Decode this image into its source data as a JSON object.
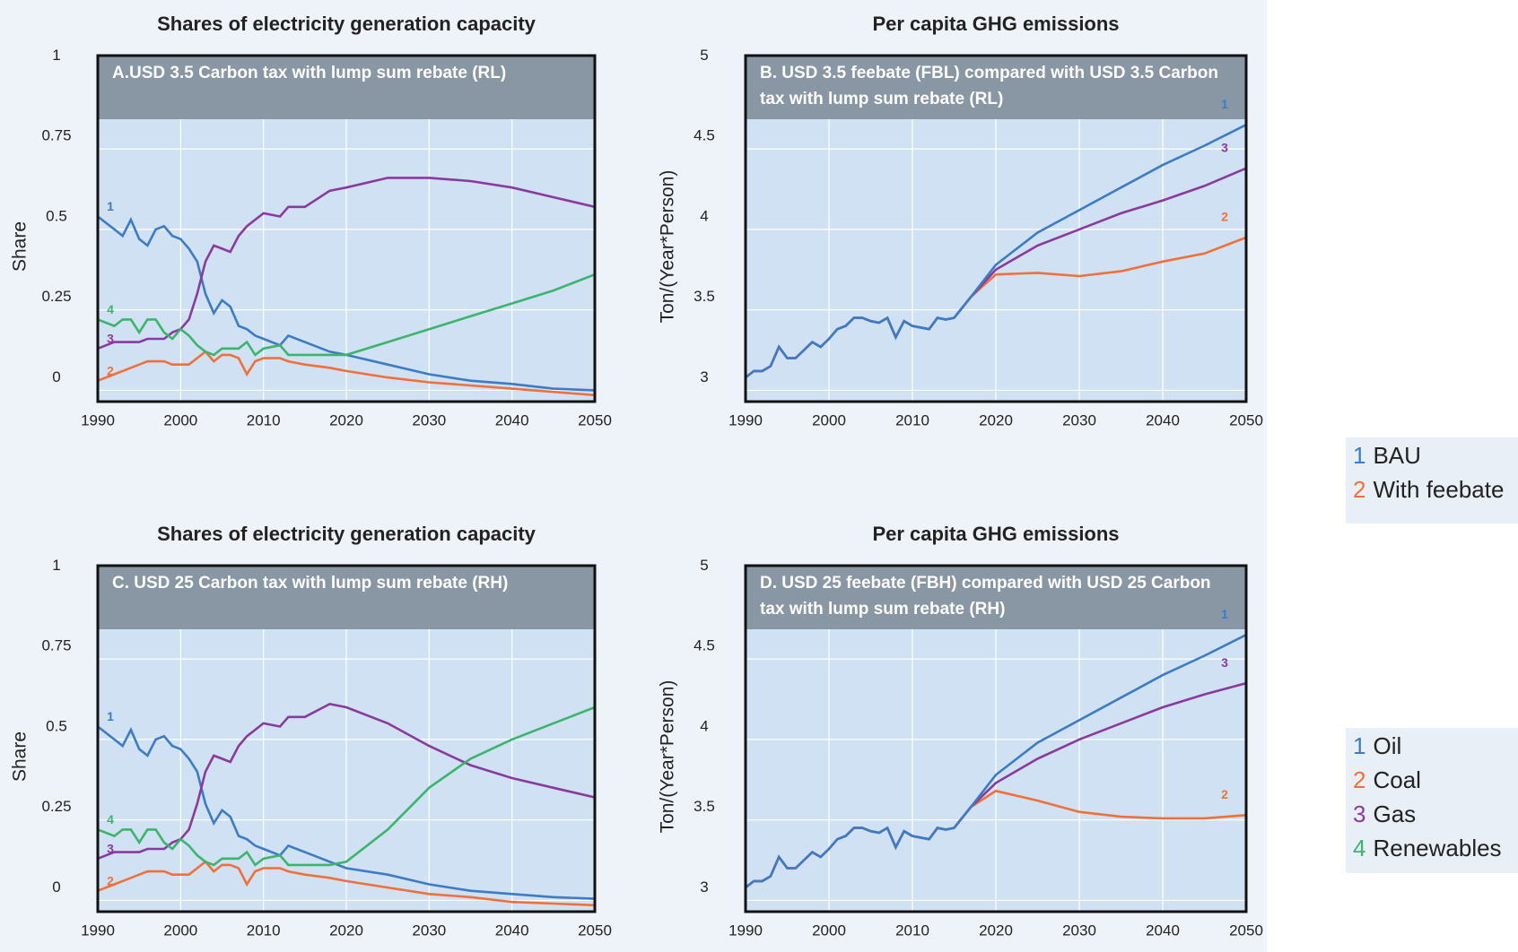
{
  "chart_data": [
    {
      "type": "line",
      "title": "Shares of electricity generation capacity",
      "subtitle": "A.USD 3.5 Carbon tax with lump sum rebate (RL)",
      "ylabel": "Share",
      "x": [
        1990,
        1992,
        1993,
        1994,
        1995,
        1996,
        1997,
        1998,
        1999,
        2000,
        2001,
        2002,
        2003,
        2004,
        2005,
        2006,
        2007,
        2008,
        2009,
        2010,
        2012,
        2013,
        2015,
        2018,
        2020,
        2025,
        2030,
        2035,
        2040,
        2045,
        2050
      ],
      "xlim": [
        1990,
        2050
      ],
      "xticks": [
        1990,
        2000,
        2010,
        2020,
        2030,
        2040,
        2050
      ],
      "ylim": [
        -0.035,
        1.04
      ],
      "yticks": [
        0,
        0.25,
        0.5,
        0.75,
        1
      ],
      "grid": true,
      "series": [
        {
          "name": "Oil",
          "label": "1",
          "color": "#3b7cc4",
          "values": [
            0.54,
            0.5,
            0.48,
            0.53,
            0.47,
            0.45,
            0.5,
            0.51,
            0.48,
            0.47,
            0.44,
            0.4,
            0.3,
            0.24,
            0.28,
            0.26,
            0.2,
            0.19,
            0.17,
            0.16,
            0.14,
            0.17,
            0.15,
            0.12,
            0.11,
            0.08,
            0.05,
            0.03,
            0.02,
            0.005,
            0.0
          ]
        },
        {
          "name": "Coal",
          "label": "2",
          "color": "#f0703a",
          "values": [
            0.03,
            0.05,
            0.06,
            0.07,
            0.08,
            0.09,
            0.09,
            0.09,
            0.08,
            0.08,
            0.08,
            0.1,
            0.12,
            0.09,
            0.11,
            0.11,
            0.1,
            0.05,
            0.09,
            0.1,
            0.1,
            0.09,
            0.08,
            0.07,
            0.06,
            0.04,
            0.025,
            0.015,
            0.005,
            -0.005,
            -0.015
          ]
        },
        {
          "name": "Gas",
          "label": "3",
          "color": "#8a3a9e",
          "values": [
            0.13,
            0.15,
            0.15,
            0.15,
            0.15,
            0.16,
            0.16,
            0.16,
            0.18,
            0.19,
            0.22,
            0.3,
            0.4,
            0.45,
            0.44,
            0.43,
            0.48,
            0.51,
            0.53,
            0.55,
            0.54,
            0.57,
            0.57,
            0.62,
            0.63,
            0.66,
            0.66,
            0.65,
            0.63,
            0.6,
            0.57
          ]
        },
        {
          "name": "Renewables",
          "label": "4",
          "color": "#3db46d",
          "values": [
            0.22,
            0.2,
            0.22,
            0.22,
            0.18,
            0.22,
            0.22,
            0.18,
            0.16,
            0.19,
            0.17,
            0.14,
            0.12,
            0.11,
            0.13,
            0.13,
            0.13,
            0.15,
            0.11,
            0.13,
            0.14,
            0.11,
            0.11,
            0.11,
            0.11,
            0.15,
            0.19,
            0.23,
            0.27,
            0.31,
            0.36
          ]
        }
      ]
    },
    {
      "type": "line",
      "title": "Per capita GHG emissions",
      "subtitle": "B. USD 3.5 feebate (FBL) compared with USD 3.5 Carbon tax with lump sum rebate (RL)",
      "ylabel": "Ton/(Year*Person)",
      "x": [
        1990,
        1991,
        1992,
        1993,
        1994,
        1995,
        1996,
        1998,
        1999,
        2000,
        2001,
        2002,
        2003,
        2004,
        2005,
        2006,
        2007,
        2008,
        2009,
        2010,
        2012,
        2013,
        2014,
        2015,
        2017,
        2020,
        2025,
        2030,
        2035,
        2040,
        2045,
        2050
      ],
      "xlim": [
        1990,
        2050
      ],
      "xticks": [
        1990,
        2000,
        2010,
        2020,
        2030,
        2040,
        2050
      ],
      "ylim": [
        2.93,
        5.08
      ],
      "yticks": [
        3,
        3.5,
        4,
        4.5,
        5
      ],
      "grid": true,
      "series": [
        {
          "name": "With feebate",
          "label": "2",
          "color": "#f0703a",
          "values": [
            3.08,
            3.12,
            3.12,
            3.15,
            3.27,
            3.2,
            3.2,
            3.3,
            3.27,
            3.32,
            3.38,
            3.4,
            3.45,
            3.45,
            3.43,
            3.42,
            3.45,
            3.33,
            3.43,
            3.4,
            3.38,
            3.45,
            3.44,
            3.45,
            3.58,
            3.72,
            3.73,
            3.71,
            3.74,
            3.8,
            3.85,
            3.95
          ]
        },
        {
          "label": "3",
          "color": "#8a3a9e",
          "values": [
            3.08,
            3.12,
            3.12,
            3.15,
            3.27,
            3.2,
            3.2,
            3.3,
            3.27,
            3.32,
            3.38,
            3.4,
            3.45,
            3.45,
            3.43,
            3.42,
            3.45,
            3.33,
            3.43,
            3.4,
            3.38,
            3.45,
            3.44,
            3.45,
            3.58,
            3.75,
            3.9,
            4.0,
            4.1,
            4.18,
            4.27,
            4.38
          ]
        },
        {
          "name": "BAU",
          "label": "1",
          "color": "#3b7cc4",
          "values": [
            3.08,
            3.12,
            3.12,
            3.15,
            3.27,
            3.2,
            3.2,
            3.3,
            3.27,
            3.32,
            3.38,
            3.4,
            3.45,
            3.45,
            3.43,
            3.42,
            3.45,
            3.33,
            3.43,
            3.4,
            3.38,
            3.45,
            3.44,
            3.45,
            3.58,
            3.78,
            3.98,
            4.12,
            4.26,
            4.4,
            4.52,
            4.65
          ]
        }
      ]
    },
    {
      "type": "line",
      "title": "Shares of electricity generation capacity",
      "subtitle": "C. USD 25 Carbon tax with lump sum rebate (RH)",
      "ylabel": "Share",
      "x": [
        1990,
        1992,
        1993,
        1994,
        1995,
        1996,
        1997,
        1998,
        1999,
        2000,
        2001,
        2002,
        2003,
        2004,
        2005,
        2006,
        2007,
        2008,
        2009,
        2010,
        2012,
        2013,
        2015,
        2018,
        2020,
        2025,
        2030,
        2035,
        2040,
        2045,
        2050
      ],
      "xlim": [
        1990,
        2050
      ],
      "xticks": [
        1990,
        2000,
        2010,
        2020,
        2030,
        2040,
        2050
      ],
      "ylim": [
        -0.035,
        1.04
      ],
      "yticks": [
        0,
        0.25,
        0.5,
        0.75,
        1
      ],
      "grid": true,
      "series": [
        {
          "label": "1",
          "color": "#3b7cc4",
          "values": [
            0.54,
            0.5,
            0.48,
            0.53,
            0.47,
            0.45,
            0.5,
            0.51,
            0.48,
            0.47,
            0.44,
            0.4,
            0.3,
            0.24,
            0.28,
            0.26,
            0.2,
            0.19,
            0.17,
            0.16,
            0.14,
            0.17,
            0.15,
            0.12,
            0.1,
            0.08,
            0.05,
            0.03,
            0.02,
            0.01,
            0.005
          ]
        },
        {
          "label": "2",
          "color": "#f0703a",
          "values": [
            0.03,
            0.05,
            0.06,
            0.07,
            0.08,
            0.09,
            0.09,
            0.09,
            0.08,
            0.08,
            0.08,
            0.1,
            0.12,
            0.09,
            0.11,
            0.11,
            0.1,
            0.05,
            0.09,
            0.1,
            0.1,
            0.09,
            0.08,
            0.07,
            0.06,
            0.04,
            0.02,
            0.01,
            -0.005,
            -0.01,
            -0.015
          ]
        },
        {
          "label": "3",
          "color": "#8a3a9e",
          "values": [
            0.13,
            0.15,
            0.15,
            0.15,
            0.15,
            0.16,
            0.16,
            0.16,
            0.18,
            0.19,
            0.22,
            0.3,
            0.4,
            0.45,
            0.44,
            0.43,
            0.48,
            0.51,
            0.53,
            0.55,
            0.54,
            0.57,
            0.57,
            0.61,
            0.6,
            0.55,
            0.48,
            0.42,
            0.38,
            0.35,
            0.32
          ]
        },
        {
          "label": "4",
          "color": "#3db46d",
          "values": [
            0.22,
            0.2,
            0.22,
            0.22,
            0.18,
            0.22,
            0.22,
            0.18,
            0.16,
            0.19,
            0.17,
            0.14,
            0.12,
            0.11,
            0.13,
            0.13,
            0.13,
            0.15,
            0.11,
            0.13,
            0.14,
            0.11,
            0.11,
            0.11,
            0.12,
            0.22,
            0.35,
            0.44,
            0.5,
            0.55,
            0.6
          ]
        }
      ]
    },
    {
      "type": "line",
      "title": "Per capita GHG emissions",
      "subtitle": "D. USD 25 feebate (FBH) compared with USD 25 Carbon tax with lump sum rebate (RH)",
      "ylabel": "Ton/(Year*Person)",
      "x": [
        1990,
        1991,
        1992,
        1993,
        1994,
        1995,
        1996,
        1998,
        1999,
        2000,
        2001,
        2002,
        2003,
        2004,
        2005,
        2006,
        2007,
        2008,
        2009,
        2010,
        2012,
        2013,
        2014,
        2015,
        2017,
        2020,
        2025,
        2030,
        2035,
        2040,
        2045,
        2050
      ],
      "xlim": [
        1990,
        2050
      ],
      "xticks": [
        1990,
        2000,
        2010,
        2020,
        2030,
        2040,
        2050
      ],
      "ylim": [
        2.93,
        5.08
      ],
      "yticks": [
        3,
        3.5,
        4,
        4.5,
        5
      ],
      "grid": true,
      "series": [
        {
          "label": "2",
          "color": "#f0703a",
          "values": [
            3.08,
            3.12,
            3.12,
            3.15,
            3.27,
            3.2,
            3.2,
            3.3,
            3.27,
            3.32,
            3.38,
            3.4,
            3.45,
            3.45,
            3.43,
            3.42,
            3.45,
            3.33,
            3.43,
            3.4,
            3.38,
            3.45,
            3.44,
            3.45,
            3.58,
            3.68,
            3.62,
            3.55,
            3.52,
            3.51,
            3.51,
            3.53
          ]
        },
        {
          "label": "3",
          "color": "#8a3a9e",
          "values": [
            3.08,
            3.12,
            3.12,
            3.15,
            3.27,
            3.2,
            3.2,
            3.3,
            3.27,
            3.32,
            3.38,
            3.4,
            3.45,
            3.45,
            3.43,
            3.42,
            3.45,
            3.33,
            3.43,
            3.4,
            3.38,
            3.45,
            3.44,
            3.45,
            3.58,
            3.73,
            3.88,
            4.0,
            4.1,
            4.2,
            4.28,
            4.35
          ]
        },
        {
          "label": "1",
          "color": "#3b7cc4",
          "values": [
            3.08,
            3.12,
            3.12,
            3.15,
            3.27,
            3.2,
            3.2,
            3.3,
            3.27,
            3.32,
            3.38,
            3.4,
            3.45,
            3.45,
            3.43,
            3.42,
            3.45,
            3.33,
            3.43,
            3.4,
            3.38,
            3.45,
            3.44,
            3.45,
            3.58,
            3.78,
            3.98,
            4.12,
            4.26,
            4.4,
            4.52,
            4.65
          ]
        }
      ]
    }
  ]
}
